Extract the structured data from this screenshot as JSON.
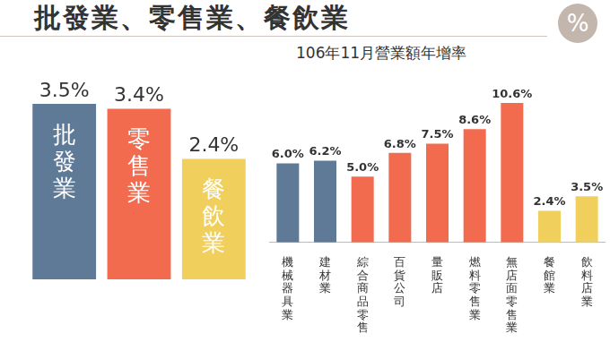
{
  "title": "批發業、零售業、餐飲業",
  "subtitle": "106年11月營業額年增率",
  "badge": "%",
  "chart_data": [
    {
      "type": "bar",
      "categories": [
        "批發業",
        "零售業",
        "餐飲業"
      ],
      "values": [
        3.5,
        3.4,
        2.4
      ],
      "value_labels": [
        "3.5%",
        "3.4%",
        "2.4%"
      ],
      "colors": [
        "#5f7a96",
        "#f26b4f",
        "#f0cf5c"
      ],
      "ylim": [
        0,
        3.5
      ],
      "grid": false,
      "data_labels": true,
      "tick_labels": false
    },
    {
      "type": "bar",
      "categories": [
        "機械器具業",
        "建材業",
        "綜合商品零售",
        "百貨公司",
        "量販店",
        "燃料零售業",
        "無店面零售業",
        "餐館業",
        "飲料店業"
      ],
      "values": [
        6.0,
        6.2,
        5.0,
        6.8,
        7.5,
        8.6,
        10.6,
        2.4,
        3.5
      ],
      "value_labels": [
        "6.0%",
        "6.2%",
        "5.0%",
        "6.8%",
        "7.5%",
        "8.6%",
        "10.6%",
        "2.4%",
        "3.5%"
      ],
      "colors": [
        "#5f7a96",
        "#5f7a96",
        "#f26b4f",
        "#f26b4f",
        "#f26b4f",
        "#f26b4f",
        "#f26b4f",
        "#f0cf5c",
        "#f0cf5c"
      ],
      "ylim": [
        0,
        10.6
      ],
      "grid": false,
      "data_labels": true,
      "tick_labels": "x"
    }
  ]
}
